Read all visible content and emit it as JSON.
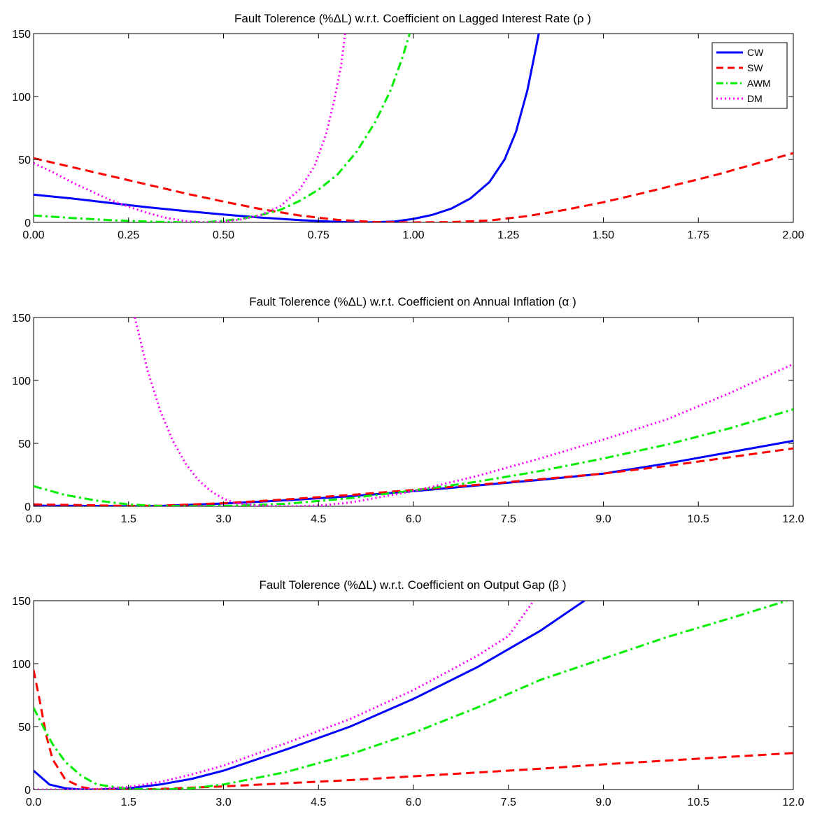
{
  "chart_data": [
    {
      "type": "line",
      "title": "Fault Tolerence (%ΔL) w.r.t. Coefficient on Lagged Interest Rate (ρ )",
      "xlabel": "",
      "ylabel": "",
      "xlim": [
        0,
        2
      ],
      "ylim": [
        0,
        150
      ],
      "x_ticks": [
        "0.00",
        "0.25",
        "0.50",
        "0.75",
        "1.00",
        "1.25",
        "1.50",
        "1.75",
        "2.00"
      ],
      "y_ticks": [
        "0",
        "50",
        "100",
        "150"
      ],
      "grid": false,
      "legend": {
        "placement": "top-right",
        "entries": [
          "CW",
          "SW",
          "AWM",
          "DM"
        ]
      },
      "series": [
        {
          "name": "CW",
          "color": "#0000ff",
          "style": "solid",
          "points": [
            [
              0,
              22
            ],
            [
              0.1,
              19
            ],
            [
              0.2,
              15.5
            ],
            [
              0.3,
              12
            ],
            [
              0.4,
              9
            ],
            [
              0.5,
              6.2
            ],
            [
              0.6,
              3.8
            ],
            [
              0.7,
              1.8
            ],
            [
              0.8,
              0.4
            ],
            [
              0.88,
              0
            ],
            [
              0.95,
              0.7
            ],
            [
              1.0,
              2.8
            ],
            [
              1.05,
              6
            ],
            [
              1.1,
              11
            ],
            [
              1.15,
              19
            ],
            [
              1.2,
              32
            ],
            [
              1.24,
              50
            ],
            [
              1.27,
              72
            ],
            [
              1.3,
              105
            ],
            [
              1.32,
              135
            ],
            [
              1.33,
              150
            ]
          ]
        },
        {
          "name": "SW",
          "color": "#ff0000",
          "style": "dashed",
          "points": [
            [
              0,
              51
            ],
            [
              0.1,
              44
            ],
            [
              0.2,
              37
            ],
            [
              0.3,
              30
            ],
            [
              0.4,
              23
            ],
            [
              0.5,
              16.5
            ],
            [
              0.6,
              10.5
            ],
            [
              0.7,
              5.5
            ],
            [
              0.8,
              2
            ],
            [
              0.9,
              0.3
            ],
            [
              1.0,
              0
            ],
            [
              1.1,
              0.2
            ],
            [
              1.2,
              1.5
            ],
            [
              1.3,
              5
            ],
            [
              1.4,
              10
            ],
            [
              1.5,
              16
            ],
            [
              1.6,
              23
            ],
            [
              1.7,
              30.5
            ],
            [
              1.8,
              38
            ],
            [
              1.9,
              46.5
            ],
            [
              2.0,
              55
            ]
          ]
        },
        {
          "name": "AWM",
          "color": "#00ee00",
          "style": "dashdot",
          "points": [
            [
              0,
              5.5
            ],
            [
              0.1,
              3.5
            ],
            [
              0.2,
              1.8
            ],
            [
              0.3,
              0.6
            ],
            [
              0.4,
              0
            ],
            [
              0.45,
              0.2
            ],
            [
              0.5,
              1.2
            ],
            [
              0.55,
              3
            ],
            [
              0.6,
              6
            ],
            [
              0.65,
              10
            ],
            [
              0.7,
              17
            ],
            [
              0.75,
              26
            ],
            [
              0.8,
              38
            ],
            [
              0.85,
              56
            ],
            [
              0.9,
              80
            ],
            [
              0.94,
              105
            ],
            [
              0.97,
              130
            ],
            [
              0.99,
              150
            ]
          ]
        },
        {
          "name": "DM",
          "color": "#ff00ff",
          "style": "dotted",
          "points": [
            [
              0,
              47
            ],
            [
              0.05,
              40
            ],
            [
              0.1,
              32
            ],
            [
              0.15,
              25
            ],
            [
              0.2,
              18
            ],
            [
              0.25,
              12.5
            ],
            [
              0.3,
              7.5
            ],
            [
              0.35,
              3.5
            ],
            [
              0.4,
              1
            ],
            [
              0.45,
              0
            ],
            [
              0.5,
              0.5
            ],
            [
              0.55,
              2.5
            ],
            [
              0.6,
              6
            ],
            [
              0.65,
              13
            ],
            [
              0.7,
              26
            ],
            [
              0.74,
              45
            ],
            [
              0.77,
              70
            ],
            [
              0.79,
              95
            ],
            [
              0.81,
              125
            ],
            [
              0.82,
              150
            ]
          ]
        }
      ]
    },
    {
      "type": "line",
      "title": "Fault Tolerence (%ΔL) w.r.t. Coefficient on Annual Inflation (α )",
      "xlabel": "",
      "ylabel": "",
      "xlim": [
        0,
        12
      ],
      "ylim": [
        0,
        150
      ],
      "x_ticks": [
        "0.0",
        "1.5",
        "3.0",
        "4.5",
        "6.0",
        "7.5",
        "9.0",
        "10.5",
        "12.0"
      ],
      "y_ticks": [
        "0",
        "50",
        "100",
        "150"
      ],
      "grid": false,
      "series": [
        {
          "name": "CW",
          "color": "#0000ff",
          "style": "solid",
          "points": [
            [
              0,
              0.5
            ],
            [
              1,
              0.3
            ],
            [
              1.5,
              0
            ],
            [
              2,
              0.3
            ],
            [
              3,
              2.2
            ],
            [
              4,
              4.8
            ],
            [
              5,
              8
            ],
            [
              6,
              12
            ],
            [
              7,
              16.5
            ],
            [
              8,
              21
            ],
            [
              9,
              26
            ],
            [
              10,
              34
            ],
            [
              11,
              43
            ],
            [
              12,
              52
            ]
          ]
        },
        {
          "name": "SW",
          "color": "#ff0000",
          "style": "dashed",
          "points": [
            [
              0,
              1.5
            ],
            [
              1,
              0.8
            ],
            [
              1.5,
              0.2
            ],
            [
              2,
              0.5
            ],
            [
              3,
              2.5
            ],
            [
              4,
              5.5
            ],
            [
              5,
              9
            ],
            [
              6,
              13
            ],
            [
              7,
              17
            ],
            [
              8,
              21.5
            ],
            [
              9,
              26
            ],
            [
              10,
              32
            ],
            [
              11,
              39
            ],
            [
              12,
              46
            ]
          ]
        },
        {
          "name": "AWM",
          "color": "#00ee00",
          "style": "dashdot",
          "points": [
            [
              0,
              16
            ],
            [
              0.5,
              9
            ],
            [
              1,
              4.5
            ],
            [
              1.5,
              1.5
            ],
            [
              2,
              0.3
            ],
            [
              2.5,
              0
            ],
            [
              3,
              0.3
            ],
            [
              4,
              2
            ],
            [
              5,
              6.5
            ],
            [
              6,
              12.5
            ],
            [
              7,
              19.5
            ],
            [
              8,
              28
            ],
            [
              9,
              38
            ],
            [
              10,
              49
            ],
            [
              11,
              62
            ],
            [
              12,
              77
            ]
          ]
        },
        {
          "name": "DM",
          "color": "#ff00ff",
          "style": "dotted",
          "points": [
            [
              1.6,
              150
            ],
            [
              1.8,
              108
            ],
            [
              2.0,
              76
            ],
            [
              2.2,
              52
            ],
            [
              2.4,
              34
            ],
            [
              2.6,
              21
            ],
            [
              2.8,
              12
            ],
            [
              3.0,
              6
            ],
            [
              3.2,
              2.5
            ],
            [
              3.5,
              0.8
            ],
            [
              4,
              0
            ],
            [
              4.5,
              0.5
            ],
            [
              5,
              3
            ],
            [
              6,
              12
            ],
            [
              7,
              24
            ],
            [
              8,
              38
            ],
            [
              9,
              53
            ],
            [
              10,
              69
            ],
            [
              11,
              90
            ],
            [
              12,
              113
            ]
          ]
        }
      ]
    },
    {
      "type": "line",
      "title": "Fault Tolerence (%ΔL) w.r.t. Coefficient on Output Gap (β )",
      "xlabel": "",
      "ylabel": "",
      "xlim": [
        0,
        12
      ],
      "ylim": [
        0,
        150
      ],
      "x_ticks": [
        "0.0",
        "1.5",
        "3.0",
        "4.5",
        "6.0",
        "7.5",
        "9.0",
        "10.5",
        "12.0"
      ],
      "y_ticks": [
        "0",
        "50",
        "100",
        "150"
      ],
      "grid": false,
      "series": [
        {
          "name": "CW",
          "color": "#0000ff",
          "style": "solid",
          "points": [
            [
              0,
              15
            ],
            [
              0.25,
              4
            ],
            [
              0.5,
              1
            ],
            [
              0.75,
              0
            ],
            [
              1,
              0
            ],
            [
              1.5,
              1
            ],
            [
              2,
              4
            ],
            [
              2.5,
              8.5
            ],
            [
              3,
              15
            ],
            [
              4,
              32
            ],
            [
              5,
              50
            ],
            [
              6,
              72
            ],
            [
              7,
              97
            ],
            [
              8,
              126
            ],
            [
              8.7,
              150
            ]
          ]
        },
        {
          "name": "SW",
          "color": "#ff0000",
          "style": "dashed",
          "points": [
            [
              0,
              95
            ],
            [
              0.1,
              70
            ],
            [
              0.2,
              43
            ],
            [
              0.3,
              24
            ],
            [
              0.5,
              8
            ],
            [
              0.75,
              2
            ],
            [
              1,
              0
            ],
            [
              1.5,
              0
            ],
            [
              2,
              0.5
            ],
            [
              2.5,
              1.5
            ],
            [
              3,
              2.5
            ],
            [
              4,
              5
            ],
            [
              5,
              7.5
            ],
            [
              6,
              10.5
            ],
            [
              7,
              13.5
            ],
            [
              8,
              16.5
            ],
            [
              9,
              20
            ],
            [
              10,
              23
            ],
            [
              11,
              26
            ],
            [
              12,
              29
            ]
          ]
        },
        {
          "name": "AWM",
          "color": "#00ee00",
          "style": "dashdot",
          "points": [
            [
              0,
              65
            ],
            [
              0.15,
              50
            ],
            [
              0.3,
              36
            ],
            [
              0.5,
              22
            ],
            [
              0.75,
              11
            ],
            [
              1,
              4
            ],
            [
              1.5,
              0.5
            ],
            [
              2,
              0
            ],
            [
              2.5,
              1
            ],
            [
              3,
              4
            ],
            [
              4,
              14
            ],
            [
              5,
              28
            ],
            [
              6,
              45
            ],
            [
              7,
              65
            ],
            [
              8,
              87
            ],
            [
              9,
              104
            ],
            [
              10,
              121
            ],
            [
              11,
              136
            ],
            [
              11.9,
              150
            ]
          ]
        },
        {
          "name": "DM",
          "color": "#ff00ff",
          "style": "dotted",
          "points": [
            [
              0,
              0
            ],
            [
              0.5,
              0
            ],
            [
              1,
              0.5
            ],
            [
              1.5,
              2
            ],
            [
              2,
              6
            ],
            [
              2.5,
              12
            ],
            [
              3,
              19
            ],
            [
              3.5,
              28
            ],
            [
              4,
              37
            ],
            [
              5,
              56
            ],
            [
              6,
              79
            ],
            [
              7,
              106
            ],
            [
              7.5,
              122
            ],
            [
              7.9,
              150
            ]
          ]
        }
      ]
    }
  ]
}
